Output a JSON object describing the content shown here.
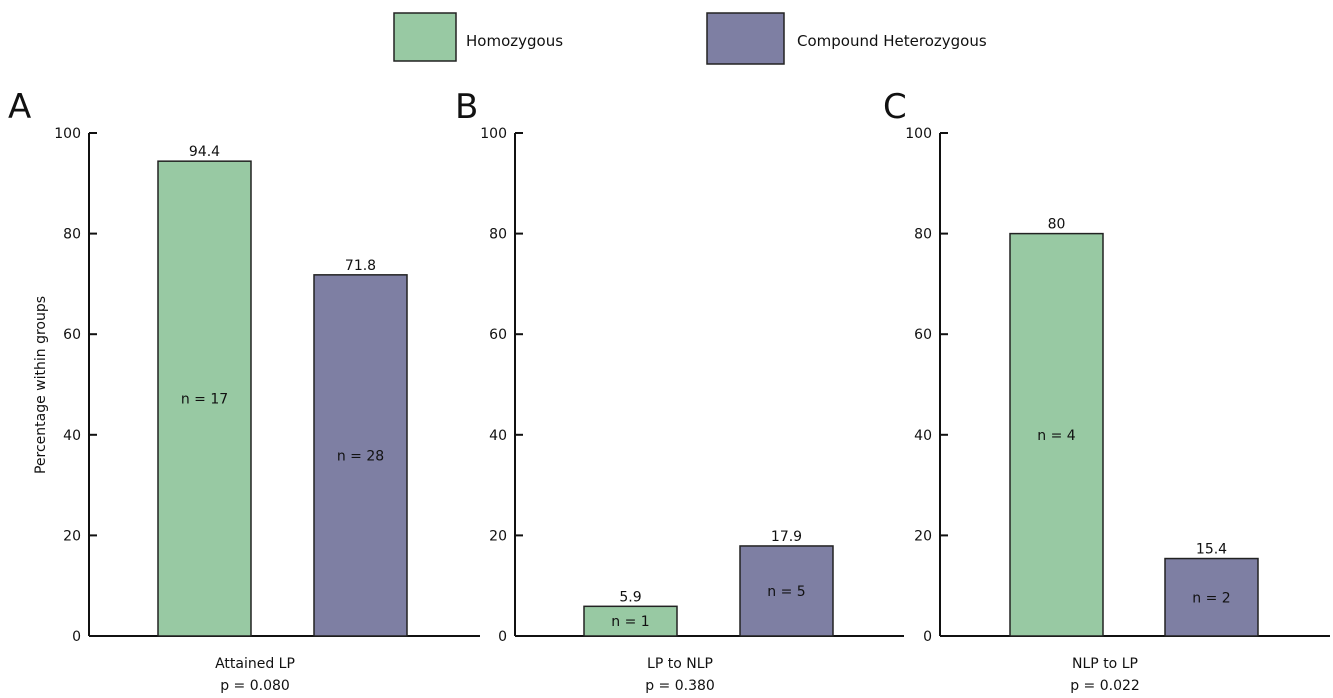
{
  "legend": {
    "placement": "top-center",
    "entries": [
      {
        "label": "Homozygous",
        "color": "#98c9a3"
      },
      {
        "label": "Compound Heterozygous",
        "color": "#7e7fa3"
      }
    ]
  },
  "ylabel": "Percentage within groups",
  "chart_data": [
    {
      "type": "bar",
      "panel_label": "A",
      "xlabel": "Attained LP",
      "pvalue": "p = 0.080",
      "ylim": [
        0,
        100
      ],
      "yticks": [
        "0",
        "20",
        "40",
        "60",
        "80",
        "100"
      ],
      "grid": false,
      "series": [
        {
          "name": "Homozygous",
          "values": [
            94.4
          ],
          "value_labels": [
            "94.4"
          ],
          "n_labels": [
            "n = 17"
          ]
        },
        {
          "name": "Compound Heterozygous",
          "values": [
            71.8
          ],
          "value_labels": [
            "71.8"
          ],
          "n_labels": [
            "n = 28"
          ]
        }
      ]
    },
    {
      "type": "bar",
      "panel_label": "B",
      "xlabel": "LP to NLP",
      "pvalue": "p = 0.380",
      "ylim": [
        0,
        100
      ],
      "yticks": [
        "0",
        "20",
        "40",
        "60",
        "80",
        "100"
      ],
      "grid": false,
      "series": [
        {
          "name": "Homozygous",
          "values": [
            5.9
          ],
          "value_labels": [
            "5.9"
          ],
          "n_labels": [
            "n = 1"
          ]
        },
        {
          "name": "Compound Heterozygous",
          "values": [
            17.9
          ],
          "value_labels": [
            "17.9"
          ],
          "n_labels": [
            "n = 5"
          ]
        }
      ]
    },
    {
      "type": "bar",
      "panel_label": "C",
      "xlabel": "NLP to LP",
      "pvalue": "p = 0.022",
      "ylim": [
        0,
        100
      ],
      "yticks": [
        "0",
        "20",
        "40",
        "60",
        "80",
        "100"
      ],
      "grid": false,
      "series": [
        {
          "name": "Homozygous",
          "values": [
            80
          ],
          "value_labels": [
            "80"
          ],
          "n_labels": [
            "n = 4"
          ]
        },
        {
          "name": "Compound Heterozygous",
          "values": [
            15.4
          ],
          "value_labels": [
            "15.4"
          ],
          "n_labels": [
            "n = 2"
          ]
        }
      ]
    }
  ]
}
